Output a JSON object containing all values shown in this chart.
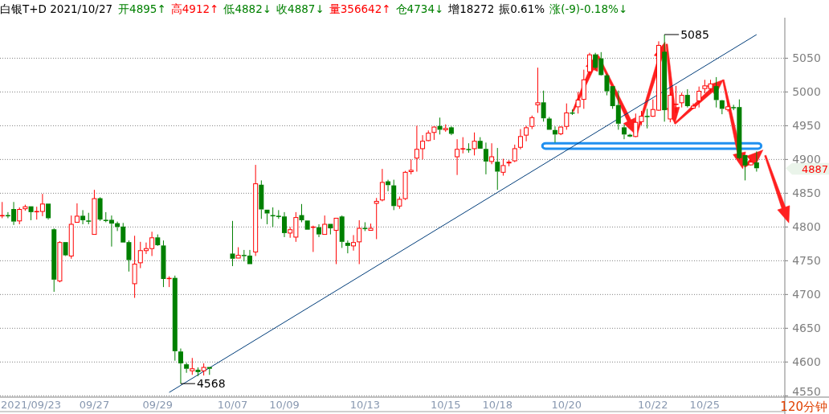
{
  "chart_data": {
    "type": "candlestick",
    "title": "白银T+D 2021/10/27",
    "annotations": [
      "开4895↑",
      "高4912↑",
      "低4882↓",
      "收4887↓",
      "量356642↑",
      "仓4734↓",
      "增18272",
      "振0.61%",
      "涨(-9)-0.18%↓",
      "120分钟",
      "5085",
      "4568",
      "4887"
    ],
    "categories": [
      null,
      null,
      null,
      null,
      null,
      "2021/09/23",
      null,
      null,
      null,
      null,
      null,
      null,
      null,
      null,
      null,
      null,
      "09/27",
      null,
      null,
      null,
      null,
      null,
      null,
      null,
      null,
      null,
      null,
      "09/29",
      null,
      null,
      null,
      null,
      null,
      null,
      null,
      null,
      null,
      null,
      null,
      null,
      "10/07",
      null,
      null,
      null,
      null,
      null,
      null,
      null,
      null,
      "10/09",
      null,
      null,
      null,
      null,
      null,
      null,
      null,
      null,
      null,
      null,
      null,
      null,
      null,
      "10/13",
      null,
      null,
      null,
      null,
      null,
      null,
      null,
      null,
      null,
      null,
      null,
      null,
      null,
      "10/15",
      null,
      null,
      null,
      null,
      null,
      null,
      null,
      null,
      "10/18",
      null,
      null,
      null,
      null,
      null,
      null,
      null,
      null,
      null,
      null,
      null,
      "10/20",
      null,
      null,
      null,
      null,
      null,
      null,
      null,
      null,
      null,
      null,
      null,
      null,
      null,
      null,
      "10/22",
      null,
      null,
      null,
      null,
      null,
      null,
      null,
      null,
      "10/25",
      null,
      null,
      null,
      null,
      null,
      null,
      null,
      null,
      null
    ],
    "ohlc": [
      [
        4817,
        4837,
        4813,
        4817
      ],
      [
        4817,
        4822,
        4813,
        4817
      ],
      [
        4826,
        4837,
        4803,
        4808
      ],
      [
        4809,
        4829,
        4804,
        4826
      ],
      [
        4827,
        4833,
        4824,
        4830
      ],
      [
        4830,
        4830,
        4810,
        4822
      ],
      [
        4823,
        4830,
        4811,
        4823
      ],
      [
        4823,
        4849,
        4816,
        4834
      ],
      [
        4834,
        4834,
        4811,
        4813
      ],
      [
        4796,
        4798,
        4704,
        4722
      ],
      [
        4720,
        4779,
        4718,
        4777
      ],
      [
        4777,
        4777,
        4757,
        4758
      ],
      [
        4757,
        4817,
        4753,
        4804
      ],
      [
        4807,
        4835,
        4807,
        4816
      ],
      [
        4816,
        4825,
        4804,
        4810
      ],
      [
        4809,
        4821,
        4804,
        4809
      ],
      [
        4789,
        4855,
        4789,
        4842
      ],
      [
        4842,
        4844,
        4809,
        4811
      ],
      [
        4810,
        4822,
        4807,
        4810
      ],
      [
        4810,
        4817,
        4771,
        4805
      ],
      [
        4805,
        4808,
        4794,
        4800
      ],
      [
        4800,
        4806,
        4777,
        4777
      ],
      [
        4777,
        4780,
        4734,
        4751
      ],
      [
        4716,
        4787,
        4695,
        4745
      ],
      [
        4747,
        4778,
        4739,
        4765
      ],
      [
        4765,
        4777,
        4760,
        4768
      ],
      [
        4768,
        4793,
        4757,
        4784
      ],
      [
        4784,
        4789,
        4772,
        4773
      ],
      [
        4772,
        4780,
        4711,
        4723
      ],
      [
        4724,
        4727,
        4711,
        4724
      ],
      [
        4724,
        4728,
        4602,
        4616
      ],
      [
        4615,
        4620,
        4568,
        4598
      ],
      [
        4596,
        4599,
        4584,
        4590
      ],
      [
        4587,
        4606,
        4581,
        4590
      ],
      [
        4588,
        4592,
        4579,
        4585
      ],
      [
        4587,
        4598,
        4580,
        4592
      ],
      [
        4592,
        4592,
        4581,
        4590
      ],
      null,
      null,
      null,
      [
        4760,
        4809,
        4742,
        4753
      ],
      [
        4754,
        4770,
        4754,
        4758
      ],
      [
        4758,
        4766,
        4749,
        4757
      ],
      [
        4757,
        4766,
        4745,
        4745
      ],
      [
        4763,
        4892,
        4757,
        4864
      ],
      [
        4862,
        4869,
        4812,
        4826
      ],
      [
        4825,
        4825,
        4804,
        4820
      ],
      [
        4817,
        4829,
        4800,
        4817
      ],
      [
        4816,
        4825,
        4812,
        4816
      ],
      [
        4815,
        4822,
        4785,
        4791
      ],
      [
        4791,
        4800,
        4784,
        4796
      ],
      [
        4785,
        4822,
        4778,
        4814
      ],
      [
        4817,
        4834,
        4807,
        4810
      ],
      [
        4809,
        4809,
        4796,
        4796
      ],
      [
        4800,
        4802,
        4763,
        4800
      ],
      [
        4799,
        4804,
        4785,
        4789
      ],
      [
        4789,
        4817,
        4789,
        4804
      ],
      [
        4804,
        4804,
        4789,
        4798
      ],
      [
        4795,
        4813,
        4745,
        4813
      ],
      [
        4815,
        4817,
        4769,
        4778
      ],
      [
        4776,
        4780,
        4761,
        4772
      ],
      [
        4772,
        4788,
        4765,
        4777
      ],
      [
        4778,
        4810,
        4745,
        4798
      ],
      [
        4798,
        4807,
        4794,
        4798
      ],
      [
        4795,
        4805,
        4795,
        4798
      ],
      [
        4835,
        4843,
        4782,
        4838
      ],
      [
        4840,
        4886,
        4838,
        4866
      ],
      [
        4867,
        4870,
        4853,
        4862
      ],
      [
        4861,
        4870,
        4825,
        4831
      ],
      [
        4831,
        4845,
        4827,
        4841
      ],
      [
        4842,
        4883,
        4840,
        4881
      ],
      [
        4882,
        4900,
        4878,
        4884
      ],
      [
        4902,
        4950,
        4882,
        4915
      ],
      [
        4916,
        4936,
        4900,
        4927
      ],
      [
        4928,
        4943,
        4927,
        4939
      ],
      [
        4940,
        4949,
        4929,
        4948
      ],
      [
        4949,
        4962,
        4937,
        4944
      ],
      [
        4944,
        4952,
        4941,
        4946
      ],
      [
        4947,
        4949,
        4936,
        4938
      ],
      [
        4904,
        4930,
        4877,
        4915
      ],
      [
        4916,
        4933,
        4909,
        4916
      ],
      [
        4915,
        4924,
        4910,
        4915
      ],
      [
        4916,
        4940,
        4906,
        4927
      ],
      [
        4927,
        4933,
        4916,
        4916
      ],
      [
        4915,
        4925,
        4878,
        4897
      ],
      [
        4897,
        4924,
        4893,
        4904
      ],
      [
        4896,
        4917,
        4855,
        4882
      ],
      [
        4881,
        4901,
        4876,
        4891
      ],
      [
        4895,
        4899,
        4890,
        4896
      ],
      [
        4898,
        4922,
        4896,
        4916
      ],
      [
        4918,
        4945,
        4915,
        4934
      ],
      [
        4936,
        4950,
        4927,
        4947
      ],
      [
        4949,
        4965,
        4945,
        4962
      ],
      [
        4981,
        5036,
        4969,
        4984
      ],
      [
        4984,
        5002,
        4956,
        4961
      ],
      [
        4960,
        4963,
        4944,
        4944
      ],
      [
        4943,
        4949,
        4925,
        4937
      ],
      [
        4938,
        4949,
        4936,
        4948
      ],
      [
        4949,
        4983,
        4944,
        4969
      ],
      [
        4969,
        4974,
        4966,
        4969
      ],
      [
        4978,
        5000,
        4968,
        4988
      ],
      [
        4989,
        5033,
        4975,
        5018
      ],
      [
        5030,
        5058,
        5025,
        5055
      ],
      [
        5055,
        5058,
        5034,
        5036
      ],
      [
        5049,
        5059,
        5024,
        5025
      ],
      [
        5024,
        5027,
        4995,
        5001
      ],
      [
        5008,
        5008,
        4975,
        4979
      ],
      [
        4980,
        5002,
        4944,
        4953
      ],
      [
        4947,
        4952,
        4930,
        4937
      ],
      [
        4936,
        4938,
        4933,
        4934
      ],
      [
        4934,
        4968,
        4933,
        4955
      ],
      [
        4956,
        4972,
        4951,
        4964
      ],
      [
        4964,
        4975,
        4946,
        4964
      ],
      [
        4964,
        4989,
        4963,
        4974
      ],
      [
        4973,
        5075,
        4972,
        5069
      ],
      [
        5059,
        5085,
        4956,
        4973
      ],
      [
        4960,
        5000,
        4955,
        4995
      ],
      [
        4982,
        5009,
        4969,
        4982
      ],
      [
        4984,
        4999,
        4977,
        4995
      ],
      [
        4995,
        5004,
        4977,
        4979
      ],
      [
        4976,
        4983,
        4975,
        4979
      ],
      [
        4987,
        5008,
        4977,
        5001
      ],
      [
        5005,
        5018,
        4998,
        5009
      ],
      [
        5005,
        5018,
        5000,
        5012
      ],
      [
        5008,
        5022,
        4977,
        4988
      ],
      [
        4987,
        4988,
        4967,
        4975
      ],
      [
        4974,
        4987,
        4971,
        4978
      ],
      [
        4977,
        4981,
        4973,
        4977
      ],
      [
        4977,
        4989,
        4900,
        4902
      ],
      [
        4906,
        4906,
        4869,
        4891
      ],
      [
        4892,
        4900,
        4891,
        4896
      ],
      [
        4895,
        4912,
        4882,
        4887
      ]
    ],
    "colors": [
      "#ff0000",
      "#008000",
      "#008000",
      "#ff0000",
      "#ff0000",
      "#008000",
      "#ff0000",
      "#ff0000",
      "#008000",
      "#008000",
      "#ff0000",
      "#008000",
      "#ff0000",
      "#ff0000",
      "#008000",
      "#008000",
      "#ff0000",
      "#008000",
      "#008000",
      "#008000",
      "#008000",
      "#008000",
      "#008000",
      "#ff0000",
      "#ff0000",
      "#ff0000",
      "#ff0000",
      "#008000",
      "#008000",
      "#ff0000",
      "#008000",
      "#008000",
      "#008000",
      "#ff0000",
      "#008000",
      "#ff0000",
      "#008000",
      null,
      null,
      null,
      "#008000",
      "#ff0000",
      "#008000",
      "#008000",
      "#ff0000",
      "#008000",
      "#008000",
      "#008000",
      "#008000",
      "#008000",
      "#ff0000",
      "#ff0000",
      "#008000",
      "#008000",
      "#ff0000",
      "#008000",
      "#ff0000",
      "#008000",
      "#ff0000",
      "#008000",
      "#008000",
      "#ff0000",
      "#ff0000",
      "#008000",
      "#ff0000",
      "#ff0000",
      "#ff0000",
      "#008000",
      "#008000",
      "#ff0000",
      "#ff0000",
      "#ff0000",
      "#ff0000",
      "#ff0000",
      "#ff0000",
      "#ff0000",
      "#008000",
      "#ff0000",
      "#008000",
      "#ff0000",
      "#ff0000",
      "#008000",
      "#ff0000",
      "#008000",
      "#008000",
      "#ff0000",
      "#008000",
      "#ff0000",
      "#ff0000",
      "#ff0000",
      "#ff0000",
      "#ff0000",
      "#ff0000",
      "#ff0000",
      "#008000",
      "#008000",
      "#008000",
      "#ff0000",
      "#ff0000",
      "#008000",
      "#ff0000",
      "#ff0000",
      "#ff0000",
      "#008000",
      "#008000",
      "#008000",
      "#008000",
      "#008000",
      "#008000",
      "#008000",
      "#ff0000",
      "#ff0000",
      "#008000",
      "#ff0000",
      "#ff0000",
      "#008000",
      "#ff0000",
      "#ff0000",
      "#ff0000",
      "#008000",
      "#ff0000",
      "#ff0000",
      "#ff0000",
      "#ff0000",
      "#008000",
      "#008000",
      "#ff0000",
      "#008000",
      "#008000",
      "#008000",
      "#ff0000",
      "#008000"
    ],
    "series": [
      {
        "type": "line",
        "color": "#003d7a",
        "values": [
          null,
          null,
          null,
          null,
          null,
          null,
          null,
          null,
          null,
          null,
          null,
          null,
          null,
          null,
          null,
          null,
          null,
          null,
          null,
          null,
          null,
          null,
          null,
          null,
          null,
          null,
          null,
          null,
          null,
          4555,
          null,
          null,
          null,
          null,
          null,
          null,
          null,
          null,
          null,
          null,
          null,
          null,
          null,
          null,
          null,
          null,
          null,
          null,
          null,
          null,
          null,
          null,
          null,
          null,
          null,
          null,
          null,
          null,
          null,
          null,
          null,
          null,
          null,
          null,
          null,
          null,
          null,
          null,
          null,
          null,
          null,
          null,
          null,
          null,
          null,
          null,
          null,
          null,
          null,
          null,
          null,
          null,
          null,
          null,
          null,
          null,
          null,
          null,
          null,
          null,
          null,
          null,
          null,
          null,
          null,
          null,
          null,
          null,
          null,
          null,
          null,
          null,
          null,
          null,
          null,
          null,
          null,
          null,
          null,
          null,
          null,
          null,
          null,
          null,
          null,
          null,
          null,
          null,
          null,
          null,
          null,
          null,
          null,
          null,
          null,
          null,
          null,
          null,
          null,
          null,
          null,
          5085
        ]
      }
    ],
    "ylim": [
      4548,
      5110
    ],
    "yticks": [
      4550,
      4600,
      4650,
      4700,
      4750,
      4800,
      4850,
      4900,
      4950,
      5000,
      5050
    ],
    "grid": "y"
  }
}
